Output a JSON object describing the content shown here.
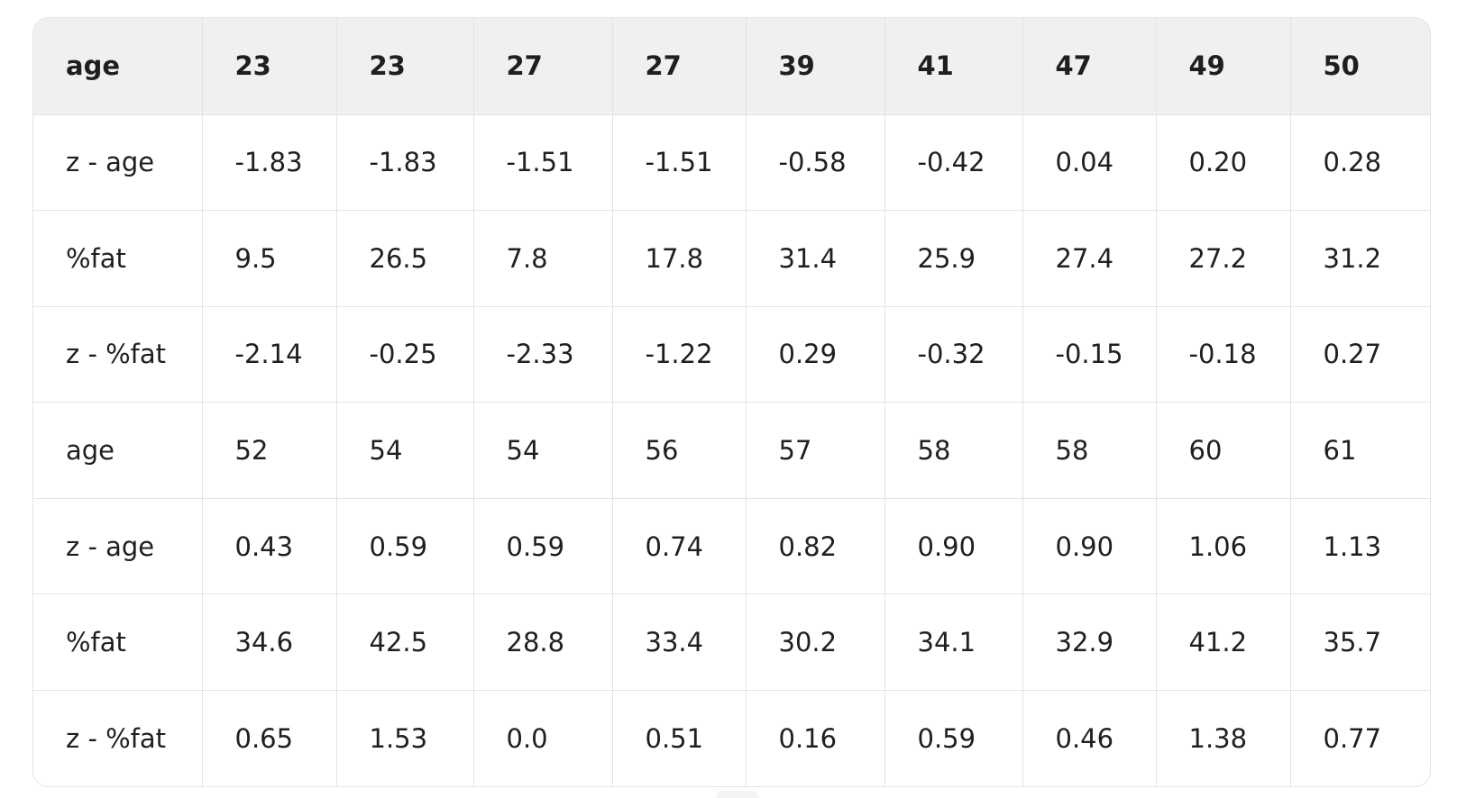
{
  "table": {
    "header": [
      "age",
      "23",
      "23",
      "27",
      "27",
      "39",
      "41",
      "47",
      "49",
      "50"
    ],
    "rows": [
      [
        "z - age",
        "-1.83",
        "-1.83",
        "-1.51",
        "-1.51",
        "-0.58",
        "-0.42",
        "0.04",
        "0.20",
        "0.28"
      ],
      [
        "%fat",
        "9.5",
        "26.5",
        "7.8",
        "17.8",
        "31.4",
        "25.9",
        "27.4",
        "27.2",
        "31.2"
      ],
      [
        "z - %fat",
        "-2.14",
        "-0.25",
        "-2.33",
        "-1.22",
        "0.29",
        "-0.32",
        "-0.15",
        "-0.18",
        "0.27"
      ],
      [
        "age",
        "52",
        "54",
        "54",
        "56",
        "57",
        "58",
        "58",
        "60",
        "61"
      ],
      [
        "z - age",
        "0.43",
        "0.59",
        "0.59",
        "0.74",
        "0.82",
        "0.90",
        "0.90",
        "1.06",
        "1.13"
      ],
      [
        "%fat",
        "34.6",
        "42.5",
        "28.8",
        "33.4",
        "30.2",
        "34.1",
        "32.9",
        "41.2",
        "35.7"
      ],
      [
        "z - %fat",
        "0.65",
        "1.53",
        "0.0",
        "0.51",
        "0.16",
        "0.59",
        "0.46",
        "1.38",
        "0.77"
      ]
    ]
  }
}
